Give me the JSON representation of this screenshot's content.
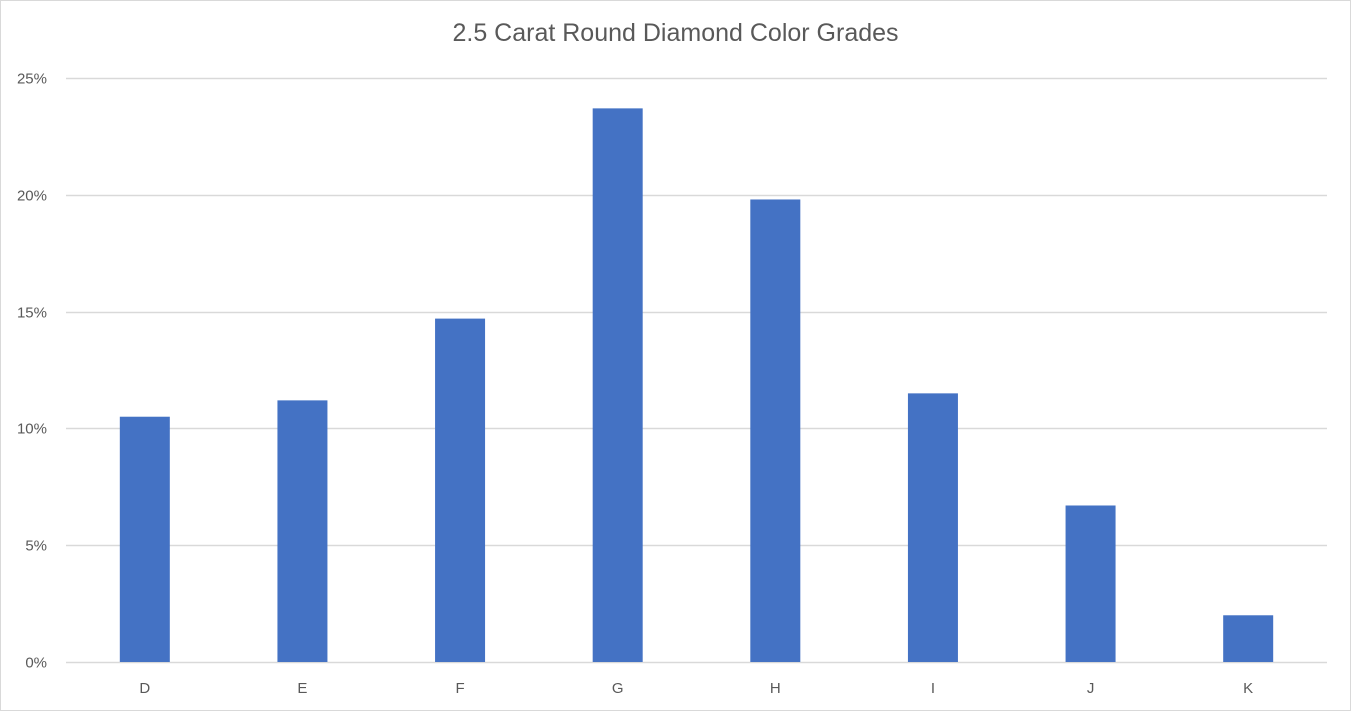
{
  "chart_data": {
    "type": "bar",
    "title": "2.5 Carat Round Diamond Color Grades",
    "xlabel": "",
    "ylabel": "",
    "categories": [
      "D",
      "E",
      "F",
      "G",
      "H",
      "I",
      "J",
      "K"
    ],
    "values": [
      10.5,
      11.2,
      14.7,
      23.7,
      19.8,
      11.5,
      6.7,
      2.0
    ],
    "value_unit": "percent",
    "ylim": [
      0,
      25
    ],
    "yticks": [
      0,
      5,
      10,
      15,
      20,
      25
    ],
    "ytick_labels": [
      "0%",
      "5%",
      "10%",
      "15%",
      "20%",
      "25%"
    ],
    "grid": true,
    "legend": "none",
    "colors": {
      "bar": "#4472c4",
      "grid": "#d9d9d9",
      "text": "#595959",
      "title": "#595959",
      "border": "#d9d9d9"
    }
  }
}
